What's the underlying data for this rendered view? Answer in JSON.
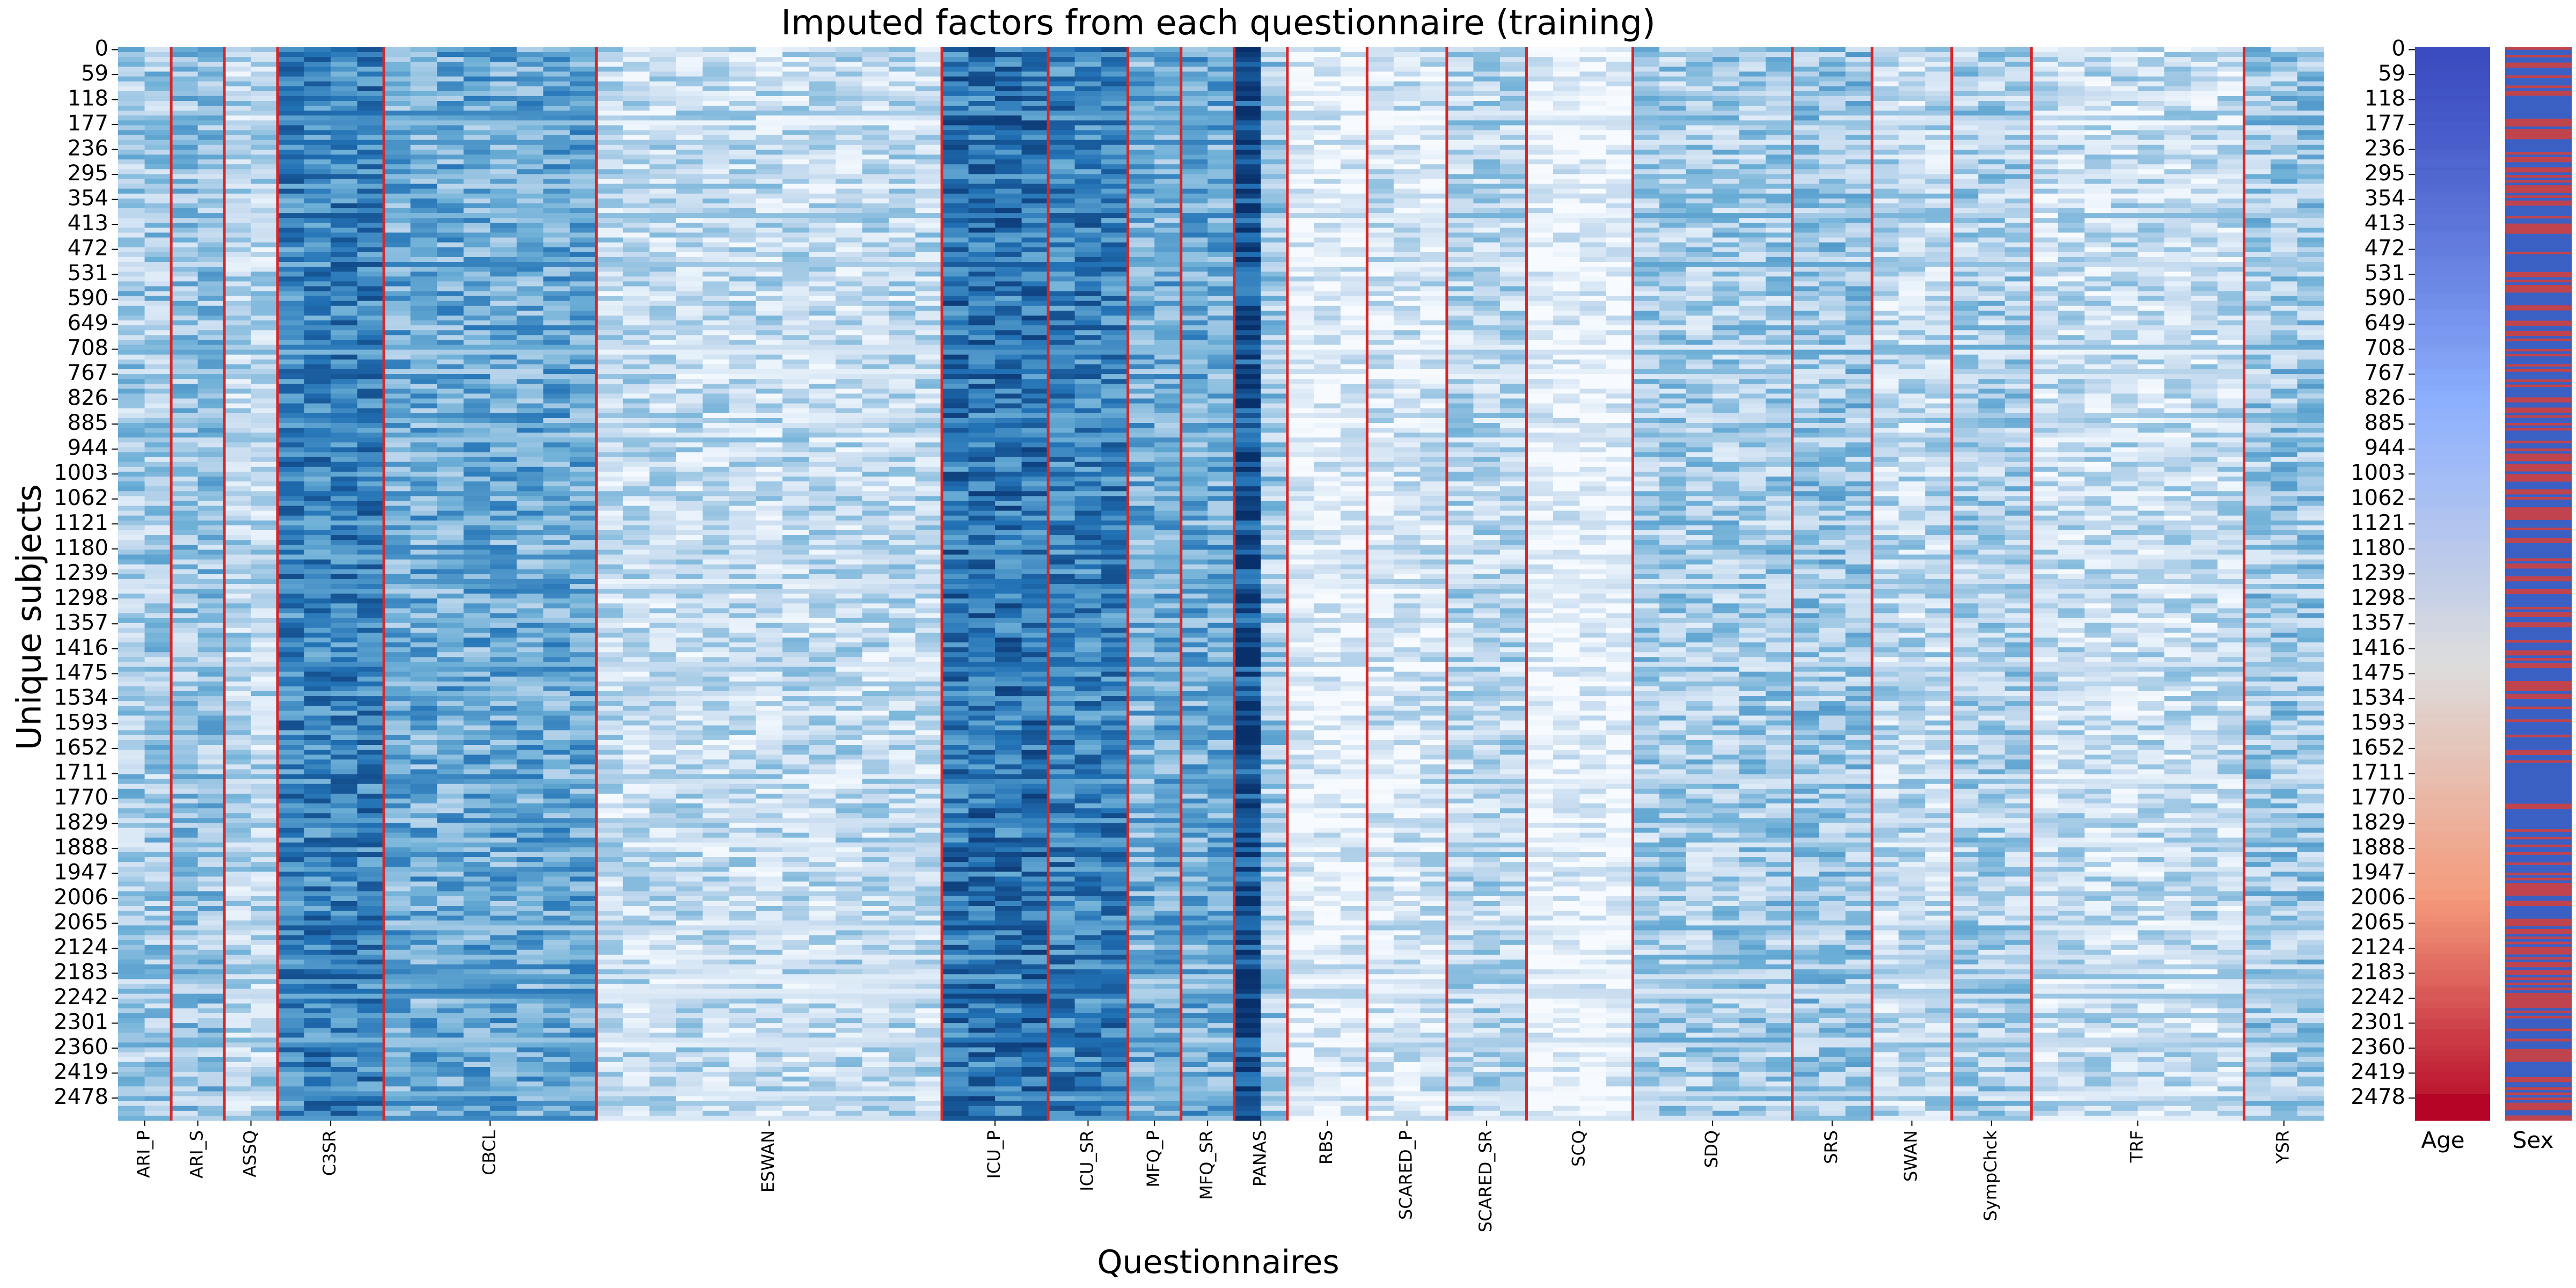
{
  "chart_data": [
    {
      "type": "heatmap",
      "title": "Imputed factors from each questionnaire (training)",
      "xlabel": "Questionnaires",
      "ylabel": "Unique subjects",
      "n_subjects": 2537,
      "y_ticks": [
        0,
        59,
        118,
        177,
        236,
        295,
        354,
        413,
        472,
        531,
        590,
        649,
        708,
        767,
        826,
        885,
        944,
        1003,
        1062,
        1121,
        1180,
        1239,
        1298,
        1357,
        1416,
        1475,
        1534,
        1593,
        1652,
        1711,
        1770,
        1829,
        1888,
        1947,
        2006,
        2065,
        2124,
        2183,
        2242,
        2301,
        2360,
        2419,
        2478
      ],
      "questionnaires": [
        {
          "name": "ARI_P",
          "factors": 2,
          "intensity": 0.3
        },
        {
          "name": "ARI_S",
          "factors": 2,
          "intensity": 0.33
        },
        {
          "name": "ASSQ",
          "factors": 2,
          "intensity": 0.22
        },
        {
          "name": "C3SR",
          "factors": 4,
          "intensity": 0.55
        },
        {
          "name": "CBCL",
          "factors": 8,
          "intensity": 0.4
        },
        {
          "name": "ESWAN",
          "factors": 13,
          "intensity": 0.18
        },
        {
          "name": "ICU_P",
          "factors": 4,
          "intensity": 0.55
        },
        {
          "name": "ICU_SR",
          "factors": 3,
          "intensity": 0.5
        },
        {
          "name": "MFQ_P",
          "factors": 2,
          "intensity": 0.35
        },
        {
          "name": "MFQ_SR",
          "factors": 2,
          "intensity": 0.35
        },
        {
          "name": "PANAS",
          "factors": 2,
          "intensity": 0.6
        },
        {
          "name": "RBS",
          "factors": 3,
          "intensity": 0.18
        },
        {
          "name": "SCARED_P",
          "factors": 3,
          "intensity": 0.28
        },
        {
          "name": "SCARED_SR",
          "factors": 3,
          "intensity": 0.4
        },
        {
          "name": "SCQ",
          "factors": 4,
          "intensity": 0.12
        },
        {
          "name": "SDQ",
          "factors": 6,
          "intensity": 0.45
        },
        {
          "name": "SRS",
          "factors": 3,
          "intensity": 0.48
        },
        {
          "name": "SWAN",
          "factors": 3,
          "intensity": 0.3
        },
        {
          "name": "SympChck",
          "factors": 3,
          "intensity": 0.38
        },
        {
          "name": "TRF",
          "factors": 8,
          "intensity": 0.25
        },
        {
          "name": "YSR",
          "factors": 3,
          "intensity": 0.4
        }
      ],
      "separator_color": "#d62728",
      "colormap": "Blues"
    },
    {
      "type": "heatmap",
      "label": "Age",
      "colormap": "coolwarm",
      "trend": "increasing with subject index (blue at top, red at bottom)"
    },
    {
      "type": "heatmap",
      "label": "Sex",
      "colormap": "coolwarm",
      "values": "binary (mostly blue with red stripes)"
    }
  ],
  "colors": {
    "heat_low": "#f7fbff",
    "heat_high": "#08306b",
    "separator": "#d62728",
    "coolwarm_blue": "#3b4cc0",
    "coolwarm_white": "#dddddd",
    "coolwarm_red": "#b40426"
  }
}
